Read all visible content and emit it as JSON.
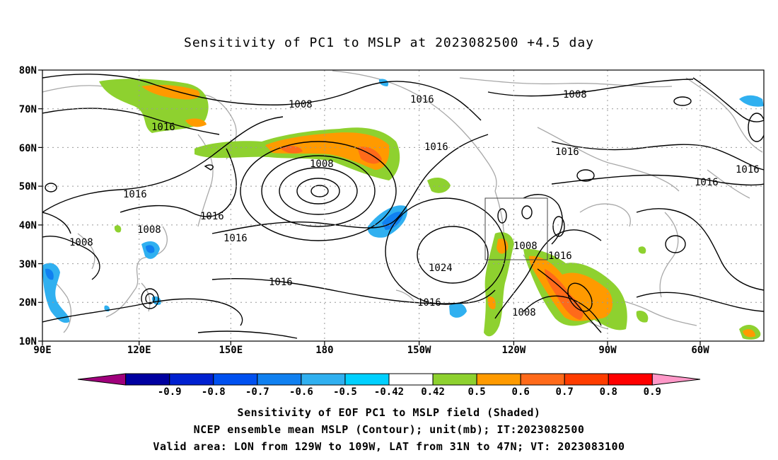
{
  "title": "Sensitivity of PC1 to MSLP at 2023082500 +4.5 day",
  "map": {
    "lat_labels": [
      "80N",
      "70N",
      "60N",
      "50N",
      "40N",
      "30N",
      "20N",
      "10N"
    ],
    "lon_labels": [
      "90E",
      "120E",
      "150E",
      "180",
      "150W",
      "120W",
      "90W",
      "60W"
    ],
    "lon_range": [
      "90E",
      "44W"
    ],
    "lat_range": [
      "10N",
      "80N"
    ],
    "valid_box": {
      "lon": [
        "129W",
        "109W"
      ],
      "lat": [
        "31N",
        "47N"
      ]
    },
    "contour_labels": [
      "1008",
      "1016",
      "1016",
      "1008",
      "1016",
      "1016",
      "1016",
      "1016",
      "1008",
      "1016",
      "1016",
      "1008",
      "1016",
      "1008",
      "1016",
      "1024",
      "1016",
      "1016",
      "1008",
      "1008"
    ]
  },
  "colorbar": {
    "labels": [
      "-0.9",
      "-0.8",
      "-0.7",
      "-0.6",
      "-0.5",
      "-0.42",
      "0.42",
      "0.5",
      "0.6",
      "0.7",
      "0.8",
      "0.9"
    ],
    "colors": [
      "#a0007c",
      "#0000a0",
      "#0020d0",
      "#0050f0",
      "#1080f0",
      "#30b0f0",
      "#00d0ff",
      "#ffffff",
      "#8ed12f",
      "#ff9a00",
      "#ff6a1a",
      "#ff3c00",
      "#ff0000",
      "#ff98c8"
    ]
  },
  "captions": [
    "Sensitivity of EOF PC1 to MSLP field (Shaded)",
    "NCEP ensemble mean MSLP (Contour); unit(mb); IT:2023082500",
    "Valid area: LON from 129W to 109W, LAT from 31N to 47N; VT: 2023083100"
  ]
}
